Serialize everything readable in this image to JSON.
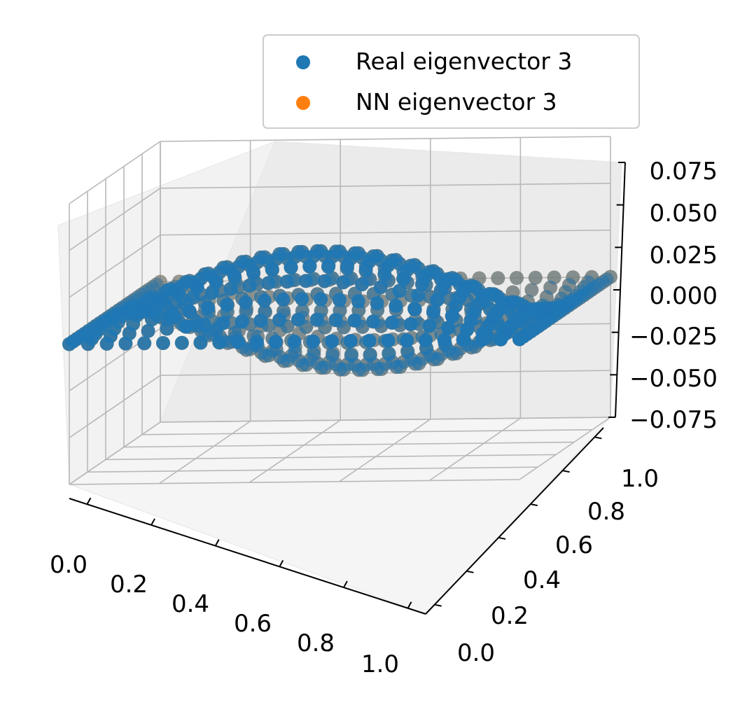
{
  "chart_data": {
    "type": "scatter3d",
    "title": "",
    "xlabel": "",
    "ylabel": "",
    "zlabel": "",
    "xlim": [
      0,
      1
    ],
    "ylim": [
      0,
      1
    ],
    "zlim": [
      -0.075,
      0.075
    ],
    "x_ticks": [
      "0.0",
      "0.2",
      "0.4",
      "0.6",
      "0.8",
      "1.0"
    ],
    "y_ticks": [
      "0.0",
      "0.2",
      "0.4",
      "0.6",
      "0.8",
      "1.0"
    ],
    "z_ticks": [
      "−0.075",
      "−0.050",
      "−0.025",
      "0.000",
      "0.025",
      "0.050",
      "0.075"
    ],
    "grid": true,
    "legend_position": "top-right",
    "grid_points_per_axis": 25,
    "surface_function": "z = amplitude * sin(pi*x) * sin(2*pi*y)",
    "series": [
      {
        "name": "Real eigenvector 3",
        "color": "#1f77b4",
        "amplitude": 0.04
      },
      {
        "name": "NN eigenvector 3",
        "color": "#ff7f0e",
        "amplitude": 0.04
      }
    ]
  }
}
